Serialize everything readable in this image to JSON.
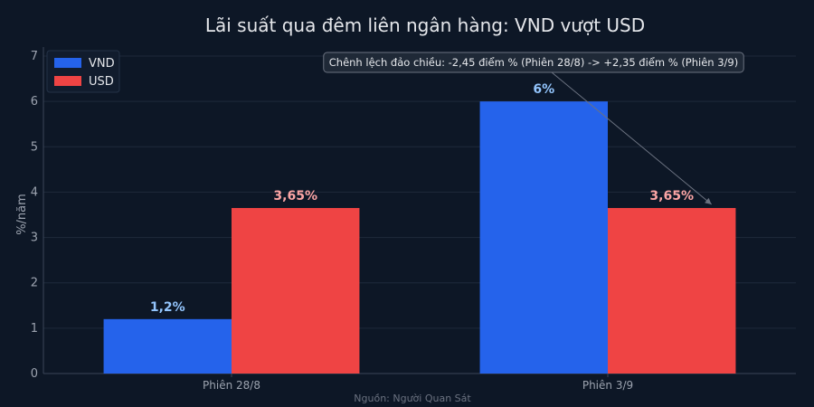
{
  "chart_data": {
    "type": "bar",
    "title": "Lãi suất qua đêm liên ngân hàng: VND vượt USD",
    "xlabel": "",
    "ylabel": "%/năm",
    "ylim": [
      0,
      7
    ],
    "yticks": [
      0,
      1,
      2,
      3,
      4,
      5,
      6,
      7
    ],
    "grid": true,
    "legend_position": "top-left",
    "categories": [
      "Phiên 28/8",
      "Phiên 3/9"
    ],
    "series": [
      {
        "name": "VND",
        "values": [
          1.2,
          6
        ],
        "labels": [
          "1,2%",
          "6%"
        ],
        "color": "#2563eb",
        "label_color": "#93c5fd"
      },
      {
        "name": "USD",
        "values": [
          3.65,
          3.65
        ],
        "labels": [
          "3,65%",
          "3,65%"
        ],
        "color": "#ef4444",
        "label_color": "#fca5a5"
      }
    ],
    "annotation": {
      "text": "Chênh lệch đảo chiều: -2,45 điểm % (Phiên 28/8) -> +2,35 điểm % (Phiên 3/9)",
      "points_to": {
        "category": "Phiên 3/9",
        "series": "USD",
        "value": 3.65
      }
    },
    "source": "Nguồn: Người Quan Sát"
  },
  "colors": {
    "background": "#0d1726",
    "grid": "#1e2a3b",
    "axis": "#3a4658",
    "text": "#e5e7eb",
    "muted": "#9ca3af",
    "source": "#6b7280"
  }
}
